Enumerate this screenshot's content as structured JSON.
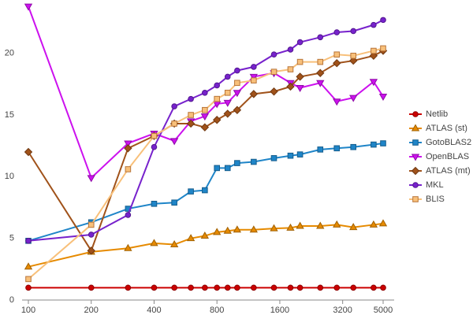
{
  "chart_data": {
    "type": "line",
    "xscale": "log",
    "grid": false,
    "legend": "right",
    "x": [
      100,
      200,
      300,
      400,
      500,
      600,
      700,
      800,
      900,
      1000,
      1200,
      1500,
      1800,
      2000,
      2500,
      3000,
      3600,
      4500,
      5000
    ],
    "xlim": [
      100,
      5000
    ],
    "xticks": [
      100,
      200,
      400,
      800,
      1600,
      3200,
      5000
    ],
    "ylim": [
      0,
      24
    ],
    "yticks": [
      0,
      5,
      10,
      15,
      20
    ],
    "series": [
      {
        "name": "Netlib",
        "color": "#cc0000",
        "marker": "circle",
        "values": [
          1,
          1,
          1,
          1,
          1,
          1,
          1,
          1,
          1,
          1,
          1,
          1,
          1,
          1,
          1,
          1,
          1,
          1,
          1
        ]
      },
      {
        "name": "ATLAS (st)",
        "color": "#e68a00",
        "marker": "triangle",
        "values": [
          2.7,
          3.9,
          4.2,
          4.6,
          4.5,
          5.0,
          5.2,
          5.5,
          5.6,
          5.7,
          5.7,
          5.8,
          5.85,
          6.0,
          6.0,
          6.1,
          5.9,
          6.1,
          6.2
        ]
      },
      {
        "name": "GotoBLAS2",
        "color": "#1f85c8",
        "marker": "square",
        "values": [
          4.8,
          6.3,
          7.4,
          7.8,
          7.9,
          8.8,
          8.9,
          10.7,
          10.7,
          11.1,
          11.2,
          11.5,
          11.7,
          11.8,
          12.2,
          12.3,
          12.4,
          12.6,
          12.7
        ]
      },
      {
        "name": "OpenBLAS",
        "color": "#cc11ee",
        "marker": "triangle-down",
        "values": [
          23.8,
          9.9,
          12.7,
          13.5,
          12.9,
          14.5,
          14.9,
          15.9,
          16.0,
          16.8,
          18.1,
          18.4,
          17.6,
          17.2,
          17.6,
          16.1,
          16.4,
          17.7,
          16.5
        ]
      },
      {
        "name": "ATLAS (mt)",
        "color": "#a0521a",
        "marker": "diamond",
        "values": [
          12.0,
          4.0,
          12.3,
          13.3,
          14.3,
          14.3,
          14.0,
          14.6,
          15.1,
          15.4,
          16.7,
          16.9,
          17.3,
          18.1,
          18.4,
          19.2,
          19.4,
          19.8,
          20.2
        ]
      },
      {
        "name": "MKL",
        "color": "#7722cc",
        "marker": "circle",
        "values": [
          4.8,
          5.3,
          6.9,
          12.4,
          15.7,
          16.3,
          16.8,
          17.4,
          18.1,
          18.6,
          18.9,
          19.9,
          20.3,
          20.9,
          21.3,
          21.7,
          21.8,
          22.3,
          22.7
        ]
      },
      {
        "name": "BLIS",
        "color": "#f8c07a",
        "marker": "square",
        "values": [
          1.7,
          6.1,
          10.6,
          13.3,
          14.3,
          15.0,
          15.4,
          16.3,
          16.8,
          17.6,
          17.8,
          18.5,
          18.7,
          19.3,
          19.3,
          19.9,
          19.8,
          20.2,
          20.4
        ]
      }
    ]
  }
}
